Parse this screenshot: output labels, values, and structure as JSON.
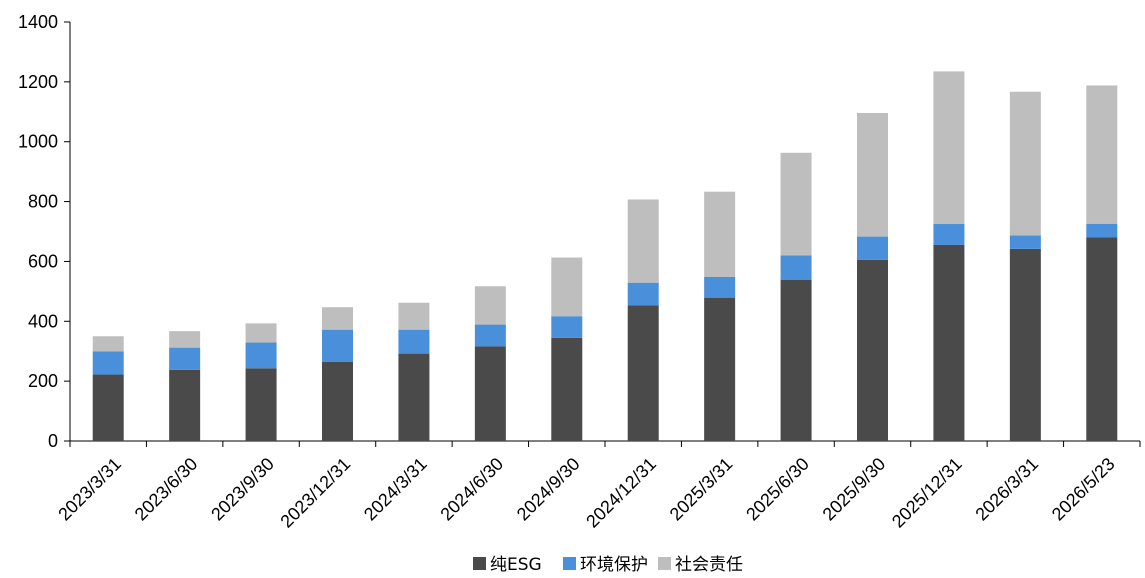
{
  "chart_data": {
    "type": "bar",
    "stacked": true,
    "title": "",
    "xlabel": "",
    "ylabel": "",
    "ylim": [
      0,
      1400
    ],
    "yticks": [
      0,
      200,
      400,
      600,
      800,
      1000,
      1200,
      1400
    ],
    "grid": false,
    "legend_position": "bottom",
    "categories": [
      "2023/3/31",
      "2023/6/30",
      "2023/9/30",
      "2023/12/31",
      "2024/3/31",
      "2024/6/30",
      "2024/9/30",
      "2024/12/31",
      "2025/3/31",
      "2025/6/30",
      "2025/9/30",
      "2025/12/31",
      "2026/3/31",
      "2026/5/23"
    ],
    "series": [
      {
        "name": "纯ESG",
        "color": "#4a4a4a",
        "values": [
          222,
          238,
          243,
          265,
          292,
          316,
          345,
          453,
          479,
          538,
          605,
          655,
          642,
          681
        ]
      },
      {
        "name": "环境保护",
        "color": "#4a8fd9",
        "values": [
          77,
          74,
          86,
          107,
          80,
          73,
          72,
          76,
          69,
          82,
          78,
          70,
          45,
          45
        ]
      },
      {
        "name": "社会责任",
        "color": "#bebebe",
        "values": [
          51,
          55,
          64,
          75,
          90,
          128,
          196,
          278,
          285,
          343,
          413,
          510,
          480,
          462
        ]
      }
    ]
  }
}
